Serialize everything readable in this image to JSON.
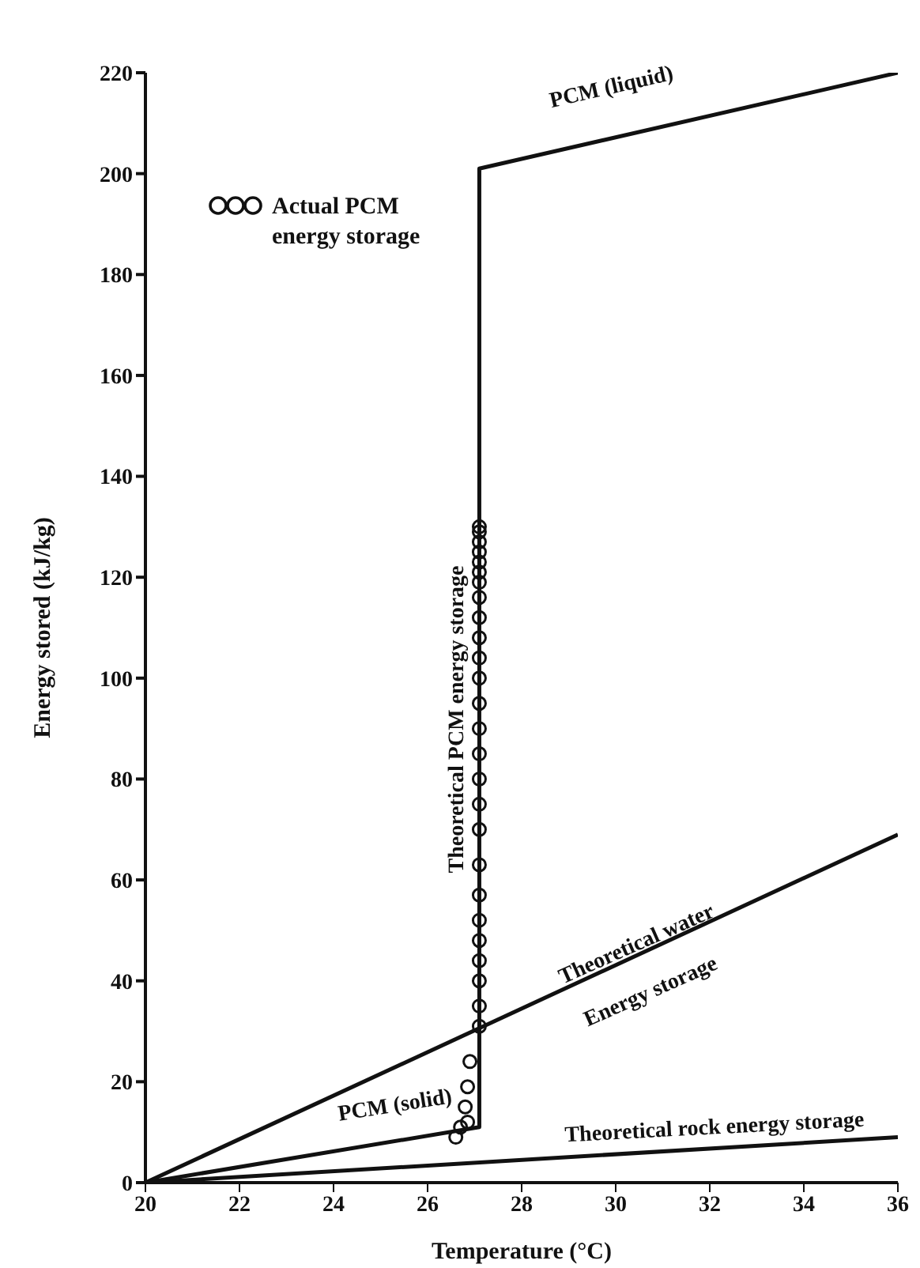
{
  "chart_data": {
    "type": "line",
    "xlabel": "Temperature (°C)",
    "ylabel": "Energy stored (kJ/kg)",
    "xlim": [
      20,
      36
    ],
    "xticks": [
      20,
      22,
      24,
      26,
      28,
      30,
      32,
      34,
      36
    ],
    "ylim": [
      0,
      220
    ],
    "yticks": [
      0,
      20,
      40,
      60,
      80,
      100,
      120,
      140,
      160,
      180,
      200,
      220
    ],
    "grid": false,
    "legend": "top left",
    "line_style": "solid",
    "series": [
      {
        "color": "#111111",
        "x": [
          20,
          27.1,
          27.1,
          36
        ],
        "values": [
          0,
          11,
          201,
          220
        ]
      },
      {
        "color": "#111111",
        "x": [
          20,
          36
        ],
        "values": [
          0,
          69
        ]
      },
      {
        "color": "#111111",
        "x": [
          20,
          36
        ],
        "values": [
          0,
          9
        ]
      },
      {
        "type": "scatter",
        "name": "Actual PCM energy storage",
        "color": "#111111",
        "marker": "circle",
        "x": [
          26.6,
          26.7,
          26.8,
          26.85,
          26.9,
          26.85,
          27.1,
          27.1,
          27.1,
          27.1,
          27.1,
          27.1,
          27.1,
          27.1,
          27.1,
          27.1,
          27.1,
          27.1,
          27.1,
          27.1,
          27.1,
          27.1,
          27.1,
          27.1,
          27.1,
          27.1,
          27.1,
          27.1,
          27.1,
          27.1,
          27.1,
          27.1
        ],
        "values": [
          9,
          11,
          15,
          19,
          24,
          12,
          31,
          35,
          40,
          44,
          48,
          52,
          57,
          63,
          70,
          75,
          80,
          85,
          90,
          95,
          100,
          104,
          108,
          112,
          116,
          119,
          121,
          123,
          125,
          127,
          129,
          130
        ]
      }
    ],
    "annotations": [
      "PCM (liquid)",
      "Theoretical PCM energy storage",
      "Theoretical water",
      "Energy storage",
      "PCM (solid)",
      "Theoretical rock energy storage"
    ]
  }
}
